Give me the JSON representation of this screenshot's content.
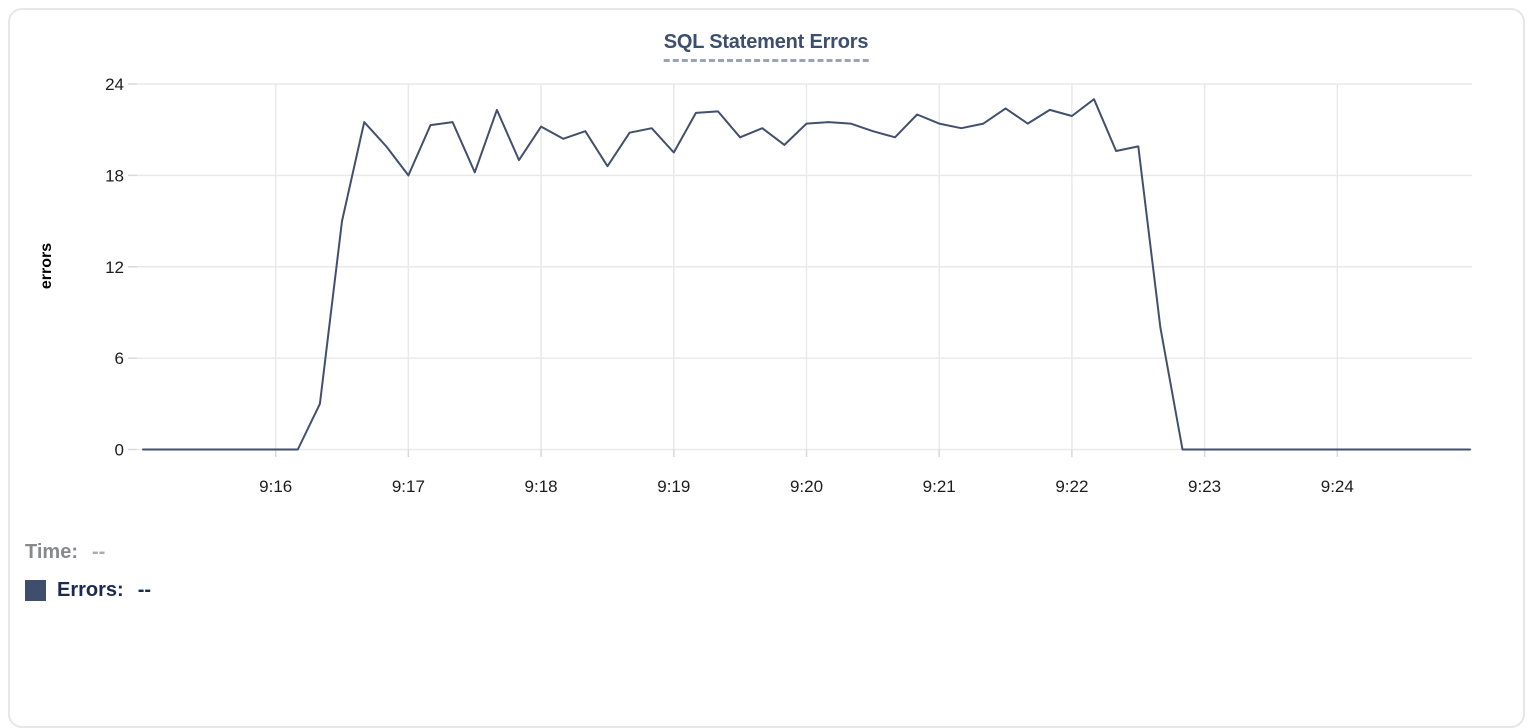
{
  "chart": {
    "title": "SQL Statement Errors",
    "ylabel": "errors"
  },
  "tooltip": {
    "time_label": "Time:",
    "time_value": "--",
    "errors_label": "Errors:",
    "errors_value": "--"
  },
  "colors": {
    "line": "#42506e",
    "title": "#3d4f6f",
    "title_underline": "#99a3b8",
    "grid": "#e9e9e9",
    "tick_stub": "#d9d9dc",
    "axis_text": "#1c1c1c",
    "time_label": "#87898c",
    "time_value": "#a9abaf",
    "errors_label": "#1b2a55",
    "errors_value": "#1b2a55",
    "swatch": "#3e4e6c",
    "card_border": "#e7e7ea"
  },
  "chart_data": {
    "type": "line",
    "title": "SQL Statement Errors",
    "xlabel": "",
    "ylabel": "errors",
    "series_name": "Errors",
    "legend_position": "none",
    "grid": true,
    "ylim": [
      0,
      24
    ],
    "y_ticks": [
      0,
      6,
      12,
      18,
      24
    ],
    "xlim": [
      "9:15:00",
      "9:25:00"
    ],
    "x_ticks": [
      {
        "t": "9:16:00",
        "label": "9:16"
      },
      {
        "t": "9:17:00",
        "label": "9:17"
      },
      {
        "t": "9:18:00",
        "label": "9:18"
      },
      {
        "t": "9:19:00",
        "label": "9:19"
      },
      {
        "t": "9:20:00",
        "label": "9:20"
      },
      {
        "t": "9:21:00",
        "label": "9:21"
      },
      {
        "t": "9:22:00",
        "label": "9:22"
      },
      {
        "t": "9:23:00",
        "label": "9:23"
      },
      {
        "t": "9:24:00",
        "label": "9:24"
      }
    ],
    "points": [
      [
        "9:15:00",
        0
      ],
      [
        "9:15:10",
        0
      ],
      [
        "9:15:20",
        0
      ],
      [
        "9:15:30",
        0
      ],
      [
        "9:15:40",
        0
      ],
      [
        "9:15:50",
        0
      ],
      [
        "9:16:00",
        0
      ],
      [
        "9:16:10",
        0
      ],
      [
        "9:16:20",
        3
      ],
      [
        "9:16:30",
        15
      ],
      [
        "9:16:40",
        21.5
      ],
      [
        "9:16:50",
        19.9
      ],
      [
        "9:17:00",
        18
      ],
      [
        "9:17:10",
        21.3
      ],
      [
        "9:17:20",
        21.5
      ],
      [
        "9:17:30",
        18.2
      ],
      [
        "9:17:40",
        22.3
      ],
      [
        "9:17:50",
        19
      ],
      [
        "9:18:00",
        21.2
      ],
      [
        "9:18:10",
        20.4
      ],
      [
        "9:18:20",
        20.9
      ],
      [
        "9:18:30",
        18.6
      ],
      [
        "9:18:40",
        20.8
      ],
      [
        "9:18:50",
        21.1
      ],
      [
        "9:19:00",
        19.5
      ],
      [
        "9:19:10",
        22.1
      ],
      [
        "9:19:20",
        22.2
      ],
      [
        "9:19:30",
        20.5
      ],
      [
        "9:19:40",
        21.1
      ],
      [
        "9:19:50",
        20
      ],
      [
        "9:20:00",
        21.4
      ],
      [
        "9:20:10",
        21.5
      ],
      [
        "9:20:20",
        21.4
      ],
      [
        "9:20:30",
        20.9
      ],
      [
        "9:20:40",
        20.5
      ],
      [
        "9:20:50",
        22
      ],
      [
        "9:21:00",
        21.4
      ],
      [
        "9:21:10",
        21.1
      ],
      [
        "9:21:20",
        21.4
      ],
      [
        "9:21:30",
        22.4
      ],
      [
        "9:21:40",
        21.4
      ],
      [
        "9:21:50",
        22.3
      ],
      [
        "9:22:00",
        21.9
      ],
      [
        "9:22:10",
        23
      ],
      [
        "9:22:20",
        19.6
      ],
      [
        "9:22:30",
        19.9
      ],
      [
        "9:22:40",
        8
      ],
      [
        "9:22:50",
        0
      ],
      [
        "9:23:00",
        0
      ],
      [
        "9:23:10",
        0
      ],
      [
        "9:23:20",
        0
      ],
      [
        "9:23:30",
        0
      ],
      [
        "9:23:40",
        0
      ],
      [
        "9:23:50",
        0
      ],
      [
        "9:24:00",
        0
      ],
      [
        "9:24:10",
        0
      ],
      [
        "9:24:20",
        0
      ],
      [
        "9:24:30",
        0
      ],
      [
        "9:24:40",
        0
      ],
      [
        "9:24:50",
        0
      ],
      [
        "9:25:00",
        0
      ]
    ]
  }
}
